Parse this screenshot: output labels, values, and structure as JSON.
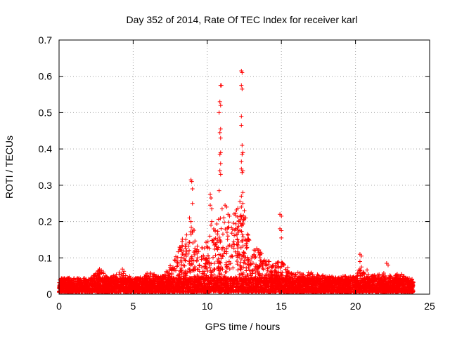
{
  "chart_data": {
    "type": "scatter",
    "title": "Day 352 of 2014, Rate Of TEC Index for receiver karl",
    "xlabel": "GPS time / hours",
    "ylabel": "ROTI / TECUs",
    "xlim": [
      0,
      25
    ],
    "ylim": [
      0,
      0.7
    ],
    "xticks": [
      0,
      5,
      10,
      15,
      20,
      25
    ],
    "yticks": [
      0,
      0.1,
      0.2,
      0.3,
      0.4,
      0.5,
      0.6,
      0.7
    ],
    "xtick_labels": [
      "0",
      "5",
      "10",
      "15",
      "20",
      "25"
    ],
    "ytick_labels": [
      "0",
      "0.1",
      "0.2",
      "0.3",
      "0.4",
      "0.5",
      "0.6",
      "0.7"
    ],
    "grid": true,
    "marker": "+",
    "series_color": "#ff0000",
    "x_extent": [
      0,
      23.9
    ],
    "baseline_range": [
      0.005,
      0.045
    ],
    "envelope": [
      [
        0,
        0.05
      ],
      [
        1,
        0.03
      ],
      [
        2,
        0.04
      ],
      [
        2.7,
        0.07
      ],
      [
        3.5,
        0.05
      ],
      [
        4.3,
        0.07
      ],
      [
        5,
        0.04
      ],
      [
        6,
        0.06
      ],
      [
        7,
        0.05
      ],
      [
        7.5,
        0.08
      ],
      [
        8,
        0.12
      ],
      [
        8.5,
        0.18
      ],
      [
        9,
        0.2
      ],
      [
        9.5,
        0.12
      ],
      [
        10,
        0.15
      ],
      [
        10.5,
        0.2
      ],
      [
        11,
        0.22
      ],
      [
        11.5,
        0.2
      ],
      [
        12,
        0.25
      ],
      [
        12.5,
        0.22
      ],
      [
        13,
        0.12
      ],
      [
        13.5,
        0.13
      ],
      [
        14,
        0.1
      ],
      [
        14.5,
        0.08
      ],
      [
        15,
        0.1
      ],
      [
        15.5,
        0.07
      ],
      [
        16,
        0.06
      ],
      [
        17,
        0.06
      ],
      [
        18,
        0.05
      ],
      [
        19,
        0.05
      ],
      [
        20,
        0.05
      ],
      [
        20.5,
        0.09
      ],
      [
        21,
        0.05
      ],
      [
        22,
        0.06
      ],
      [
        22.5,
        0.05
      ],
      [
        23,
        0.06
      ],
      [
        23.9,
        0.03
      ]
    ],
    "spikes": [
      [
        8.9,
        0.315
      ],
      [
        8.95,
        0.31
      ],
      [
        9.0,
        0.29
      ],
      [
        9.0,
        0.25
      ],
      [
        8.8,
        0.21
      ],
      [
        8.9,
        0.2
      ],
      [
        10.2,
        0.275
      ],
      [
        10.25,
        0.265
      ],
      [
        10.2,
        0.245
      ],
      [
        10.3,
        0.235
      ],
      [
        10.3,
        0.2
      ],
      [
        10.25,
        0.19
      ],
      [
        10.9,
        0.575
      ],
      [
        10.95,
        0.575
      ],
      [
        10.85,
        0.53
      ],
      [
        10.9,
        0.52
      ],
      [
        10.8,
        0.5
      ],
      [
        10.9,
        0.455
      ],
      [
        10.85,
        0.445
      ],
      [
        10.9,
        0.43
      ],
      [
        10.9,
        0.39
      ],
      [
        10.85,
        0.385
      ],
      [
        10.9,
        0.36
      ],
      [
        10.85,
        0.34
      ],
      [
        10.9,
        0.33
      ],
      [
        10.8,
        0.285
      ],
      [
        11.2,
        0.245
      ],
      [
        11.3,
        0.24
      ],
      [
        11.4,
        0.22
      ],
      [
        11.5,
        0.215
      ],
      [
        11.0,
        0.235
      ],
      [
        12.3,
        0.615
      ],
      [
        12.35,
        0.61
      ],
      [
        12.3,
        0.575
      ],
      [
        12.35,
        0.565
      ],
      [
        12.3,
        0.49
      ],
      [
        12.3,
        0.465
      ],
      [
        12.35,
        0.41
      ],
      [
        12.4,
        0.39
      ],
      [
        12.35,
        0.385
      ],
      [
        12.3,
        0.365
      ],
      [
        12.3,
        0.345
      ],
      [
        12.4,
        0.34
      ],
      [
        12.35,
        0.335
      ],
      [
        12.4,
        0.28
      ],
      [
        12.3,
        0.27
      ],
      [
        12.2,
        0.255
      ],
      [
        12.4,
        0.25
      ],
      [
        12.3,
        0.24
      ],
      [
        12.5,
        0.23
      ],
      [
        12.6,
        0.21
      ],
      [
        14.9,
        0.22
      ],
      [
        15.0,
        0.215
      ],
      [
        14.9,
        0.18
      ],
      [
        15.0,
        0.175
      ],
      [
        15.0,
        0.155
      ],
      [
        20.3,
        0.11
      ],
      [
        20.4,
        0.105
      ],
      [
        20.3,
        0.09
      ],
      [
        20.4,
        0.075
      ],
      [
        22.1,
        0.085
      ],
      [
        22.2,
        0.08
      ]
    ]
  }
}
